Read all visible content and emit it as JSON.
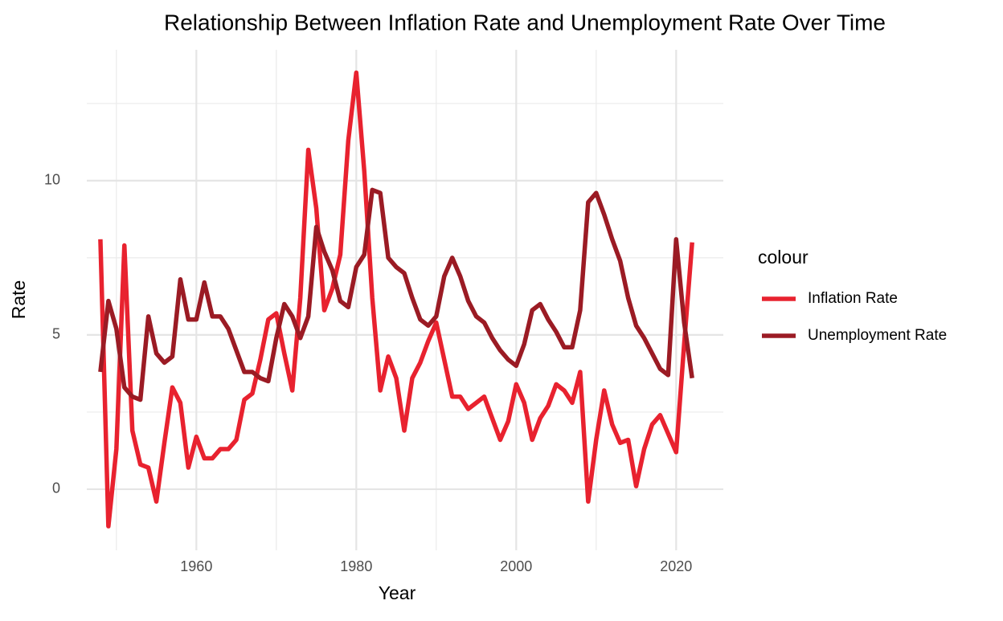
{
  "chart_data": {
    "type": "line",
    "title": "Relationship Between Inflation Rate and Unemployment Rate Over Time",
    "x_label": "Year",
    "y_label": "Rate",
    "legend_title": "colour",
    "x": [
      1948,
      1949,
      1950,
      1951,
      1952,
      1953,
      1954,
      1955,
      1956,
      1957,
      1958,
      1959,
      1960,
      1961,
      1962,
      1963,
      1964,
      1965,
      1966,
      1967,
      1968,
      1969,
      1970,
      1971,
      1972,
      1973,
      1974,
      1975,
      1976,
      1977,
      1978,
      1979,
      1980,
      1981,
      1982,
      1983,
      1984,
      1985,
      1986,
      1987,
      1988,
      1989,
      1990,
      1991,
      1992,
      1993,
      1994,
      1995,
      1996,
      1997,
      1998,
      1999,
      2000,
      2001,
      2002,
      2003,
      2004,
      2005,
      2006,
      2007,
      2008,
      2009,
      2010,
      2011,
      2012,
      2013,
      2014,
      2015,
      2016,
      2017,
      2018,
      2019,
      2020,
      2021,
      2022
    ],
    "series": [
      {
        "name": "Inflation Rate",
        "color": "#e8222f",
        "values": [
          8.1,
          -1.2,
          1.3,
          7.9,
          1.9,
          0.8,
          0.7,
          -0.4,
          1.5,
          3.3,
          2.8,
          0.7,
          1.7,
          1.0,
          1.0,
          1.3,
          1.3,
          1.6,
          2.9,
          3.1,
          4.2,
          5.5,
          5.7,
          4.4,
          3.2,
          6.2,
          11.0,
          9.1,
          5.8,
          6.5,
          7.6,
          11.3,
          13.5,
          10.3,
          6.2,
          3.2,
          4.3,
          3.6,
          1.9,
          3.6,
          4.1,
          4.8,
          5.4,
          4.2,
          3.0,
          3.0,
          2.6,
          2.8,
          3.0,
          2.3,
          1.6,
          2.2,
          3.4,
          2.8,
          1.6,
          2.3,
          2.7,
          3.4,
          3.2,
          2.8,
          3.8,
          -0.4,
          1.6,
          3.2,
          2.1,
          1.5,
          1.6,
          0.1,
          1.3,
          2.1,
          2.4,
          1.8,
          1.2,
          4.7,
          8.0
        ]
      },
      {
        "name": "Unemployment Rate",
        "color": "#9b1b24",
        "values": [
          3.8,
          6.1,
          5.2,
          3.3,
          3.0,
          2.9,
          5.6,
          4.4,
          4.1,
          4.3,
          6.8,
          5.5,
          5.5,
          6.7,
          5.6,
          5.6,
          5.2,
          4.5,
          3.8,
          3.8,
          3.6,
          3.5,
          4.9,
          6.0,
          5.6,
          4.9,
          5.6,
          8.5,
          7.7,
          7.1,
          6.1,
          5.9,
          7.2,
          7.6,
          9.7,
          9.6,
          7.5,
          7.2,
          7.0,
          6.2,
          5.5,
          5.3,
          5.6,
          6.9,
          7.5,
          6.9,
          6.1,
          5.6,
          5.4,
          4.9,
          4.5,
          4.2,
          4.0,
          4.7,
          5.8,
          6.0,
          5.5,
          5.1,
          4.6,
          4.6,
          5.8,
          9.3,
          9.6,
          8.9,
          8.1,
          7.4,
          6.2,
          5.3,
          4.9,
          4.4,
          3.9,
          3.7,
          8.1,
          5.4,
          3.6
        ]
      }
    ],
    "xlim": [
      1946.3,
      2025.9
    ],
    "xticks": [
      1960,
      1980,
      2000,
      2020
    ],
    "ylim": [
      -1.98,
      14.24
    ],
    "yticks": [
      0,
      5,
      10
    ],
    "grid": true,
    "legend": "right"
  }
}
